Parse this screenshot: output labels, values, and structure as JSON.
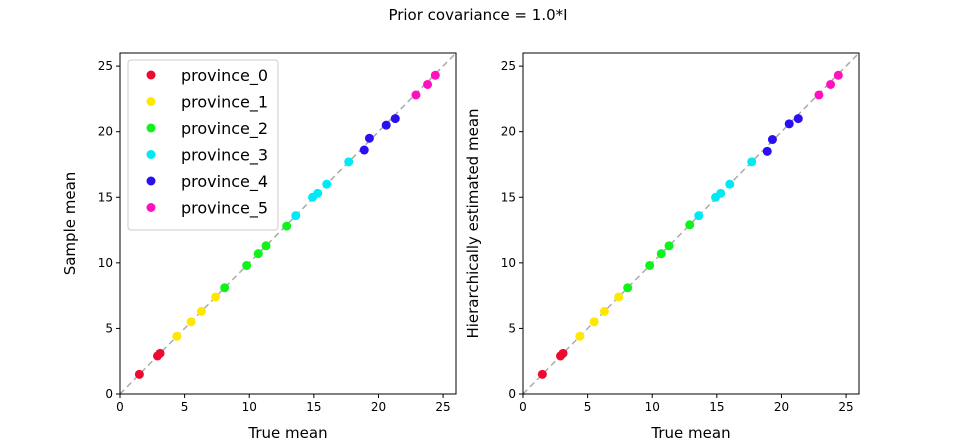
{
  "figure": {
    "title": "Prior covariance = 1.0*I"
  },
  "colors": {
    "province_0": "#ee0a2e",
    "province_1": "#ffe800",
    "province_2": "#0ef31a",
    "province_3": "#00eaf6",
    "province_4": "#2a0ff2",
    "province_5": "#ff12be",
    "diagonal": "#aaaaaa"
  },
  "chart_data": [
    {
      "type": "scatter",
      "xlabel": "True mean",
      "ylabel": "Sample mean",
      "xlim": [
        0,
        26
      ],
      "ylim": [
        0,
        26
      ],
      "xticks": [
        0,
        5,
        10,
        15,
        20,
        25
      ],
      "yticks": [
        0,
        5,
        10,
        15,
        20,
        25
      ],
      "reference_line": "y = x (dashed)",
      "legend": "upper-left",
      "series": [
        {
          "name": "province_0",
          "x": [
            1.5,
            2.9,
            3.1
          ],
          "y": [
            1.5,
            2.9,
            3.1
          ]
        },
        {
          "name": "province_1",
          "x": [
            4.4,
            5.5,
            6.3,
            7.4
          ],
          "y": [
            4.4,
            5.5,
            6.3,
            7.4
          ]
        },
        {
          "name": "province_2",
          "x": [
            8.1,
            9.8,
            10.7,
            11.3,
            12.9
          ],
          "y": [
            8.1,
            9.8,
            10.7,
            11.3,
            12.8
          ]
        },
        {
          "name": "province_3",
          "x": [
            13.6,
            14.9,
            15.3,
            16.0,
            17.7
          ],
          "y": [
            13.6,
            15.0,
            15.3,
            16.0,
            17.7
          ]
        },
        {
          "name": "province_4",
          "x": [
            18.9,
            19.3,
            20.6,
            21.3
          ],
          "y": [
            18.6,
            19.5,
            20.5,
            21.0
          ]
        },
        {
          "name": "province_5",
          "x": [
            22.9,
            23.8,
            24.4
          ],
          "y": [
            22.8,
            23.6,
            24.3
          ]
        }
      ]
    },
    {
      "type": "scatter",
      "xlabel": "True mean",
      "ylabel": "Hierarchically estimated mean",
      "xlim": [
        0,
        26
      ],
      "ylim": [
        0,
        26
      ],
      "xticks": [
        0,
        5,
        10,
        15,
        20,
        25
      ],
      "yticks": [
        0,
        5,
        10,
        15,
        20,
        25
      ],
      "reference_line": "y = x (dashed)",
      "series": [
        {
          "name": "province_0",
          "x": [
            1.5,
            2.9,
            3.1
          ],
          "y": [
            1.5,
            2.9,
            3.1
          ]
        },
        {
          "name": "province_1",
          "x": [
            4.4,
            5.5,
            6.3,
            7.4
          ],
          "y": [
            4.4,
            5.5,
            6.3,
            7.4
          ]
        },
        {
          "name": "province_2",
          "x": [
            8.1,
            9.8,
            10.7,
            11.3,
            12.9
          ],
          "y": [
            8.1,
            9.8,
            10.7,
            11.3,
            12.9
          ]
        },
        {
          "name": "province_3",
          "x": [
            13.6,
            14.9,
            15.3,
            16.0,
            17.7
          ],
          "y": [
            13.6,
            15.0,
            15.3,
            16.0,
            17.7
          ]
        },
        {
          "name": "province_4",
          "x": [
            18.9,
            19.3,
            20.6,
            21.3
          ],
          "y": [
            18.5,
            19.4,
            20.6,
            21.0
          ]
        },
        {
          "name": "province_5",
          "x": [
            22.9,
            23.8,
            24.4
          ],
          "y": [
            22.8,
            23.6,
            24.3
          ]
        }
      ]
    }
  ]
}
